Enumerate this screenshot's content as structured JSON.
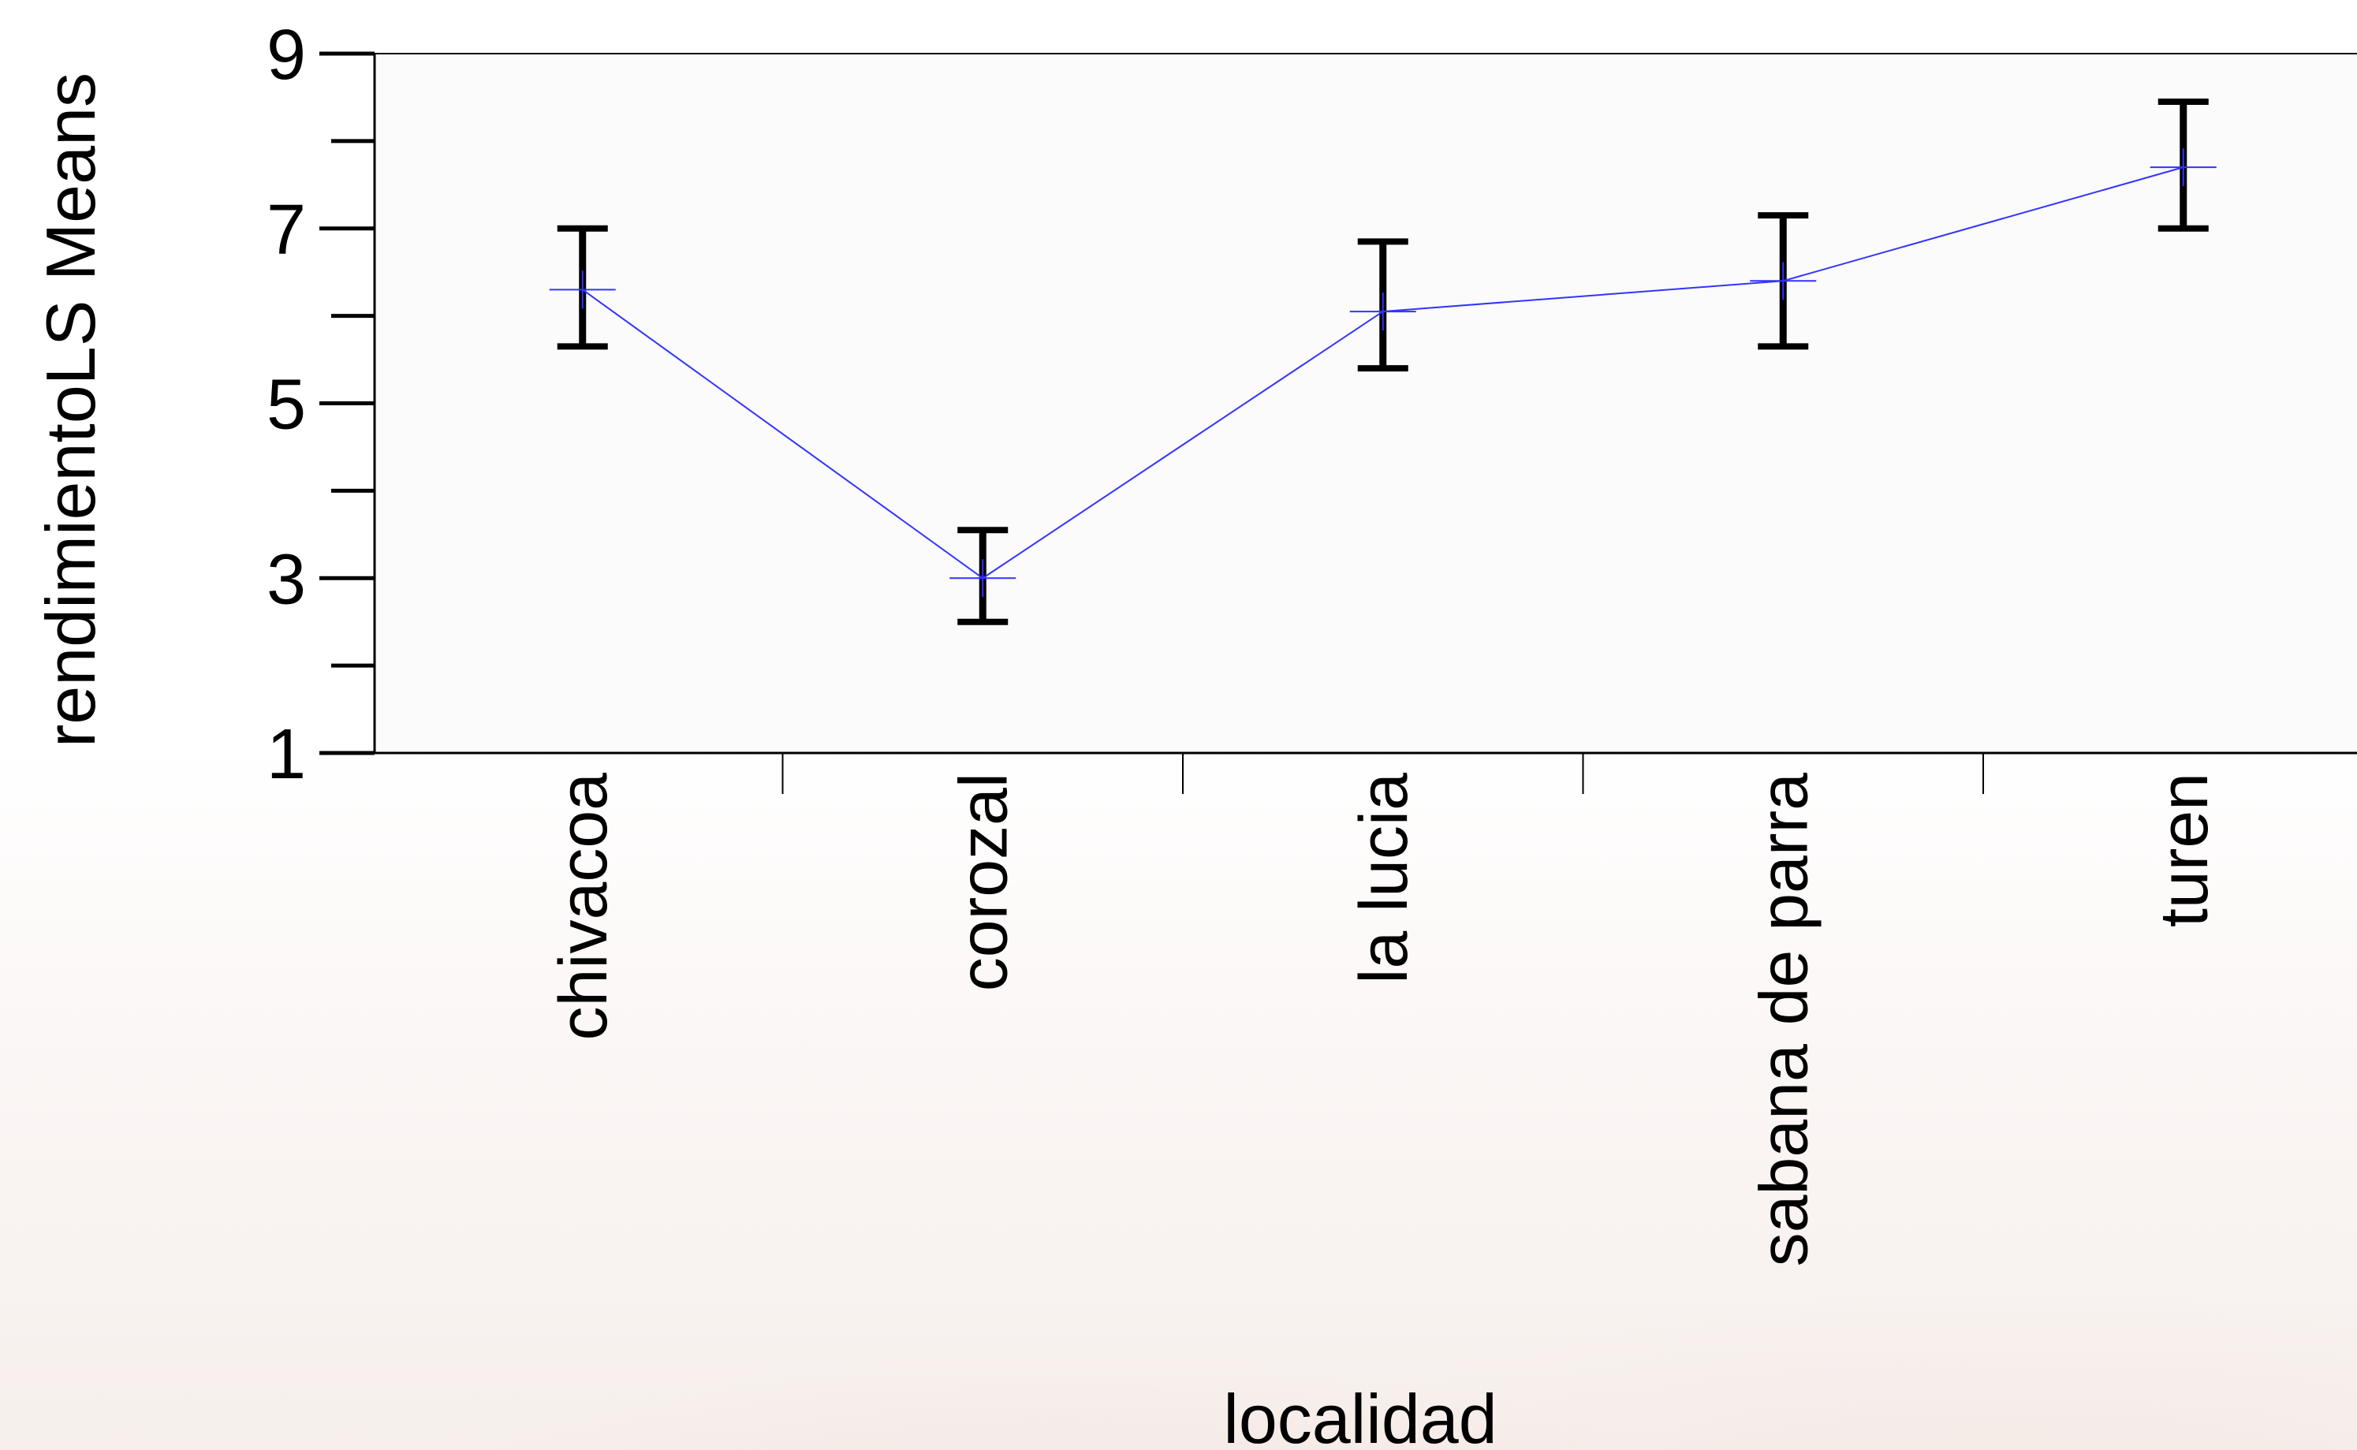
{
  "chart_data": {
    "type": "line",
    "title": "",
    "xlabel": "localidad",
    "ylabel": "rendimientoLS Means",
    "categories": [
      "chivacoa",
      "corozal",
      "la lucia",
      "sabana de parra",
      "turen"
    ],
    "values": [
      6.3,
      3.0,
      6.05,
      6.4,
      7.7
    ],
    "error_low": [
      5.65,
      2.5,
      5.4,
      5.65,
      7.0
    ],
    "error_high": [
      7.0,
      3.55,
      6.85,
      7.15,
      8.45
    ],
    "ylim": [
      1,
      9
    ],
    "yticks": [
      1,
      3,
      5,
      7,
      9
    ],
    "grid": false,
    "line_color": "#3333ff",
    "errorbar_color": "#000000"
  }
}
